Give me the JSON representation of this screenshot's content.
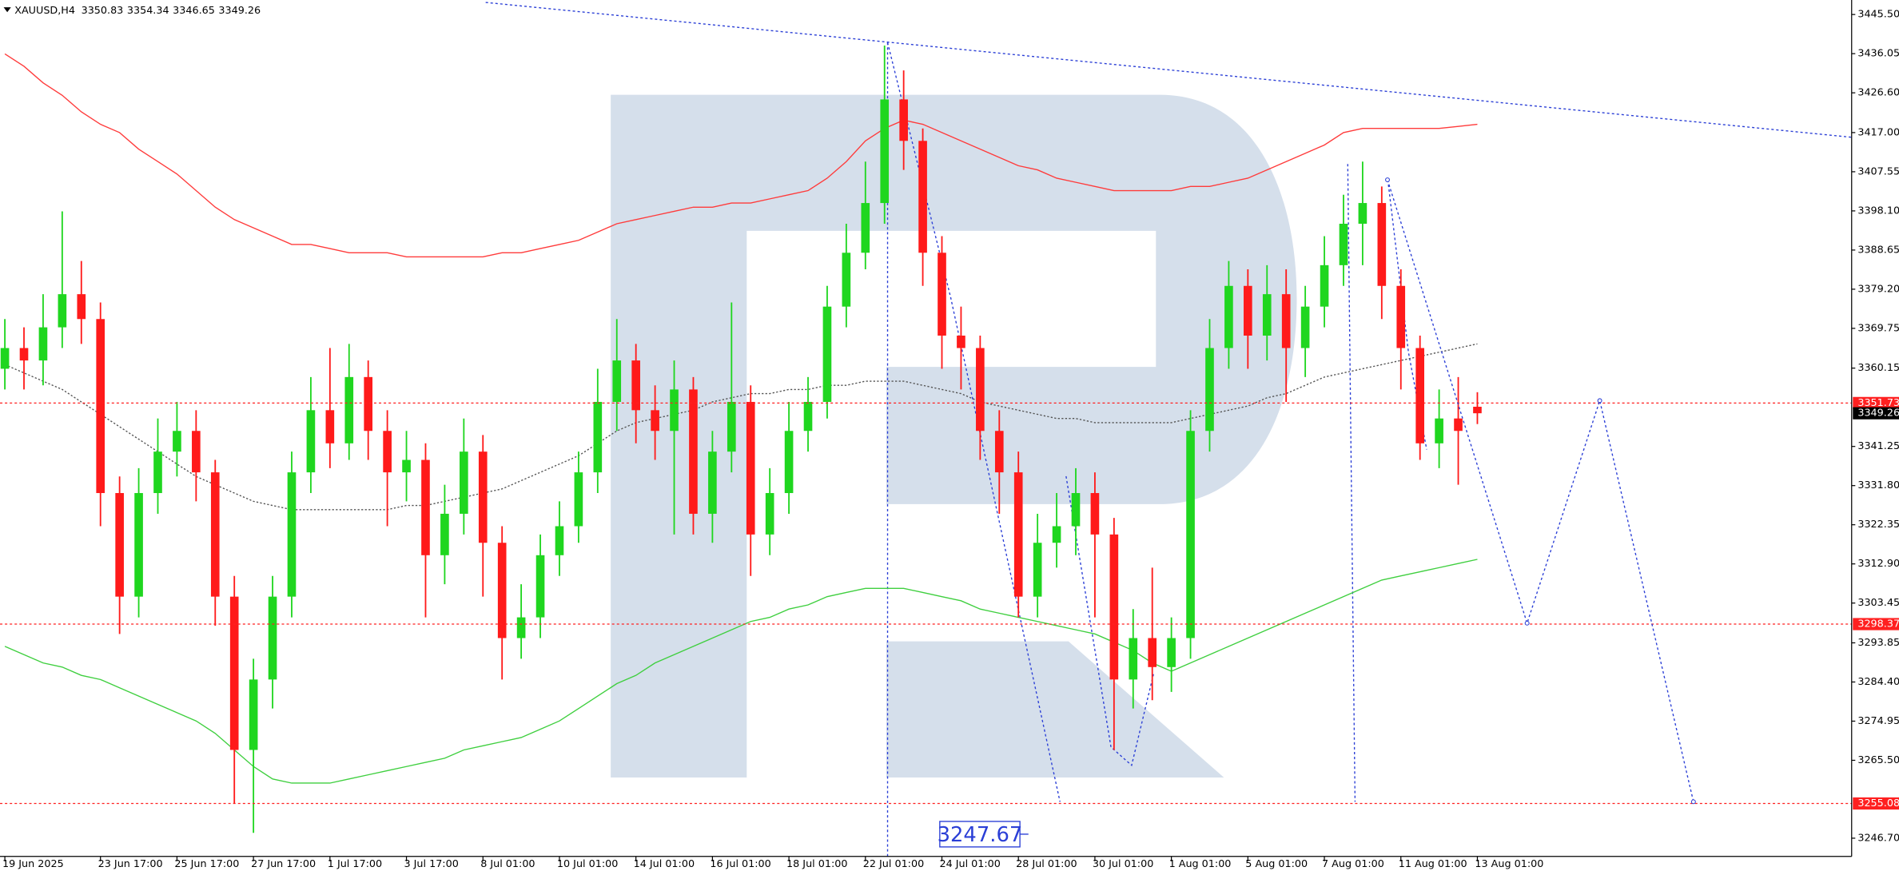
{
  "chart_data": {
    "type": "candlestick",
    "symbol": "XAUUSD,H4",
    "categories": [
      "19 Jun 2025",
      null,
      null,
      null,
      null,
      "23 Jun 17:00",
      null,
      null,
      null,
      "25 Jun 17:00",
      null,
      null,
      null,
      "27 Jun 17:00",
      null,
      null,
      null,
      "1 Jul 17:00",
      null,
      null,
      null,
      "3 Jul 17:00",
      null,
      null,
      null,
      "8 Jul 01:00",
      null,
      null,
      null,
      "10 Jul 01:00",
      null,
      null,
      null,
      "14 Jul 01:00",
      null,
      null,
      null,
      "16 Jul 01:00",
      null,
      null,
      null,
      "18 Jul 01:00",
      null,
      null,
      null,
      "22 Jul 01:00",
      null,
      null,
      null,
      "24 Jul 01:00",
      null,
      null,
      null,
      "28 Jul 01:00",
      null,
      null,
      null,
      "30 Jul 01:00",
      null,
      null,
      null,
      "1 Aug 01:00",
      null,
      null,
      null,
      "5 Aug 01:00",
      null,
      null,
      null,
      "7 Aug 01:00",
      null,
      null,
      null,
      "11 Aug 01:00",
      null,
      null,
      null,
      "13 Aug 01:00"
    ],
    "open": [
      3360,
      3365,
      3362,
      3370,
      3378,
      3372,
      3330,
      3305,
      3330,
      3340,
      3345,
      3335,
      3305,
      3268,
      3285,
      3305,
      3335,
      3350,
      3342,
      3358,
      3345,
      3335,
      3338,
      3315,
      3325,
      3340,
      3318,
      3295,
      3300,
      3315,
      3322,
      3335,
      3352,
      3362,
      3350,
      3345,
      3355,
      3325,
      3340,
      3352,
      3320,
      3330,
      3345,
      3352,
      3375,
      3388,
      3400,
      3425,
      3415,
      3388,
      3368,
      3365,
      3345,
      3335,
      3305,
      3318,
      3322,
      3330,
      3320,
      3285,
      3295,
      3288,
      3295,
      3345,
      3365,
      3380,
      3368,
      3378,
      3365,
      3375,
      3385,
      3395,
      3400,
      3380,
      3365,
      3342,
      3348,
      3350.83
    ],
    "high": [
      3372,
      3370,
      3378,
      3398,
      3386,
      3376,
      3334,
      3336,
      3348,
      3352,
      3350,
      3338,
      3310,
      3290,
      3310,
      3340,
      3358,
      3365,
      3366,
      3362,
      3350,
      3345,
      3342,
      3332,
      3348,
      3344,
      3322,
      3308,
      3320,
      3328,
      3340,
      3360,
      3372,
      3366,
      3356,
      3362,
      3358,
      3345,
      3376,
      3356,
      3336,
      3352,
      3358,
      3380,
      3395,
      3410,
      3438,
      3432,
      3418,
      3392,
      3375,
      3368,
      3350,
      3340,
      3325,
      3330,
      3336,
      3335,
      3324,
      3302,
      3312,
      3300,
      3350,
      3372,
      3386,
      3384,
      3385,
      3384,
      3380,
      3392,
      3402,
      3410,
      3404,
      3384,
      3368,
      3355,
      3358,
      3354.34
    ],
    "low": [
      3355,
      3355,
      3356,
      3365,
      3366,
      3322,
      3296,
      3300,
      3325,
      3334,
      3328,
      3298,
      3255,
      3248,
      3278,
      3300,
      3330,
      3336,
      3338,
      3338,
      3322,
      3328,
      3300,
      3308,
      3320,
      3305,
      3285,
      3290,
      3295,
      3310,
      3318,
      3330,
      3345,
      3342,
      3338,
      3320,
      3320,
      3318,
      3335,
      3310,
      3315,
      3325,
      3340,
      3348,
      3370,
      3384,
      3395,
      3408,
      3380,
      3360,
      3355,
      3338,
      3325,
      3300,
      3300,
      3312,
      3315,
      3300,
      3268,
      3278,
      3280,
      3282,
      3290,
      3340,
      3360,
      3360,
      3362,
      3352,
      3358,
      3370,
      3380,
      3385,
      3372,
      3355,
      3338,
      3336,
      3332,
      3346.65
    ],
    "close": [
      3365,
      3362,
      3370,
      3378,
      3372,
      3330,
      3305,
      3330,
      3340,
      3345,
      3335,
      3305,
      3268,
      3285,
      3305,
      3335,
      3350,
      3342,
      3358,
      3345,
      3335,
      3338,
      3315,
      3325,
      3340,
      3318,
      3295,
      3300,
      3315,
      3322,
      3335,
      3352,
      3362,
      3350,
      3345,
      3355,
      3325,
      3340,
      3352,
      3320,
      3330,
      3345,
      3352,
      3375,
      3388,
      3400,
      3425,
      3415,
      3388,
      3368,
      3365,
      3345,
      3335,
      3305,
      3318,
      3322,
      3330,
      3320,
      3285,
      3295,
      3288,
      3295,
      3345,
      3365,
      3380,
      3368,
      3378,
      3365,
      3375,
      3385,
      3395,
      3400,
      3380,
      3365,
      3342,
      3348,
      3345,
      3349.26
    ],
    "up_color": "#1fd61f",
    "down_color": "#ff1a1a",
    "moving_averages": [
      {
        "color": "#ff3b3b",
        "dashed": false,
        "values": [
          3436,
          3433,
          3429,
          3426,
          3422,
          3419,
          3417,
          3413,
          3410,
          3407,
          3403,
          3399,
          3396,
          3394,
          3392,
          3390,
          3390,
          3389,
          3388,
          3388,
          3388,
          3387,
          3387,
          3387,
          3387,
          3387,
          3388,
          3388,
          3389,
          3390,
          3391,
          3393,
          3395,
          3396,
          3397,
          3398,
          3399,
          3399,
          3400,
          3400,
          3401,
          3402,
          3403,
          3406,
          3410,
          3415,
          3418,
          3420,
          3419,
          3417,
          3415,
          3413,
          3411,
          3409,
          3408,
          3406,
          3405,
          3404,
          3403,
          3403,
          3403,
          3403,
          3404,
          3404,
          3405,
          3406,
          3408,
          3410,
          3412,
          3414,
          3417,
          3418,
          3418,
          3418,
          3418,
          3418,
          3418.5,
          3419
        ]
      },
      {
        "color": "#3fcf3f",
        "dashed": false,
        "values": [
          3293,
          3291,
          3289,
          3288,
          3286,
          3285,
          3283,
          3281,
          3279,
          3277,
          3275,
          3272,
          3268,
          3264,
          3261,
          3260,
          3260,
          3260,
          3261,
          3262,
          3263,
          3264,
          3265,
          3266,
          3268,
          3269,
          3270,
          3271,
          3273,
          3275,
          3278,
          3281,
          3284,
          3286,
          3289,
          3291,
          3293,
          3295,
          3297,
          3299,
          3300,
          3302,
          3303,
          3305,
          3306,
          3307,
          3307,
          3307,
          3306,
          3305,
          3304,
          3302,
          3301,
          3300,
          3299,
          3298,
          3297,
          3296,
          3294,
          3292,
          3289,
          3287,
          3289,
          3291,
          3293,
          3295,
          3297,
          3299,
          3301,
          3303,
          3305,
          3307,
          3309,
          3310,
          3311,
          3312,
          3313,
          3314
        ]
      },
      {
        "color": "#555555",
        "dashed": true,
        "values": [
          3361,
          3359,
          3357,
          3355,
          3352,
          3349,
          3346,
          3343,
          3340,
          3337,
          3334,
          3332,
          3330,
          3328,
          3327,
          3326,
          3326,
          3326,
          3326,
          3326,
          3326,
          3327,
          3327,
          3328,
          3329,
          3330,
          3331,
          3333,
          3335,
          3337,
          3339,
          3342,
          3345,
          3347,
          3348,
          3349,
          3350,
          3352,
          3353,
          3354,
          3354,
          3355,
          3355,
          3356,
          3356,
          3357,
          3357,
          3357,
          3356,
          3355,
          3354,
          3352,
          3351,
          3350,
          3349,
          3348,
          3348,
          3347,
          3347,
          3347,
          3347,
          3347,
          3348,
          3349,
          3350,
          3351,
          3353,
          3354,
          3356,
          3358,
          3359,
          3360,
          3361,
          3362,
          3363,
          3364,
          3365,
          3366
        ]
      }
    ],
    "forecast": {
      "color": "#2b3fd6",
      "x": [
        72.3,
        79.6,
        83.4,
        88.3
      ],
      "values": [
        3405.6,
        3298.6,
        3352.3,
        3255.5
      ]
    },
    "levels": [
      {
        "value": 3351.73,
        "color": "#ff2020"
      },
      {
        "value": 3298.37,
        "color": "#ff2020"
      },
      {
        "value": 3255.08,
        "color": "#ff2020"
      }
    ],
    "target": 3247.67,
    "ylim": [
      3242.3,
      3449.0
    ],
    "yticks": [
      {
        "value": 3445.5,
        "label": "3445.50"
      },
      3436.05,
      {
        "value": 3426.6,
        "label": "3426.60"
      },
      {
        "value": 3417,
        "label": "3417.00"
      },
      3407.55,
      {
        "value": 3398.1,
        "label": "3398.10"
      },
      3388.65,
      {
        "value": 3379.2,
        "label": "3379.20"
      },
      3369.75,
      3360.15,
      3341.25,
      {
        "value": 3331.8,
        "label": "3331.80"
      },
      3322.35,
      {
        "value": 3312.9,
        "label": "3312.90"
      },
      3303.45,
      3293.85,
      {
        "value": 3284.4,
        "label": "3284.40"
      },
      3274.95,
      {
        "value": 3265.5,
        "label": "3265.50"
      },
      {
        "value": 3246.7,
        "label": "3246.70"
      }
    ]
  }
}
